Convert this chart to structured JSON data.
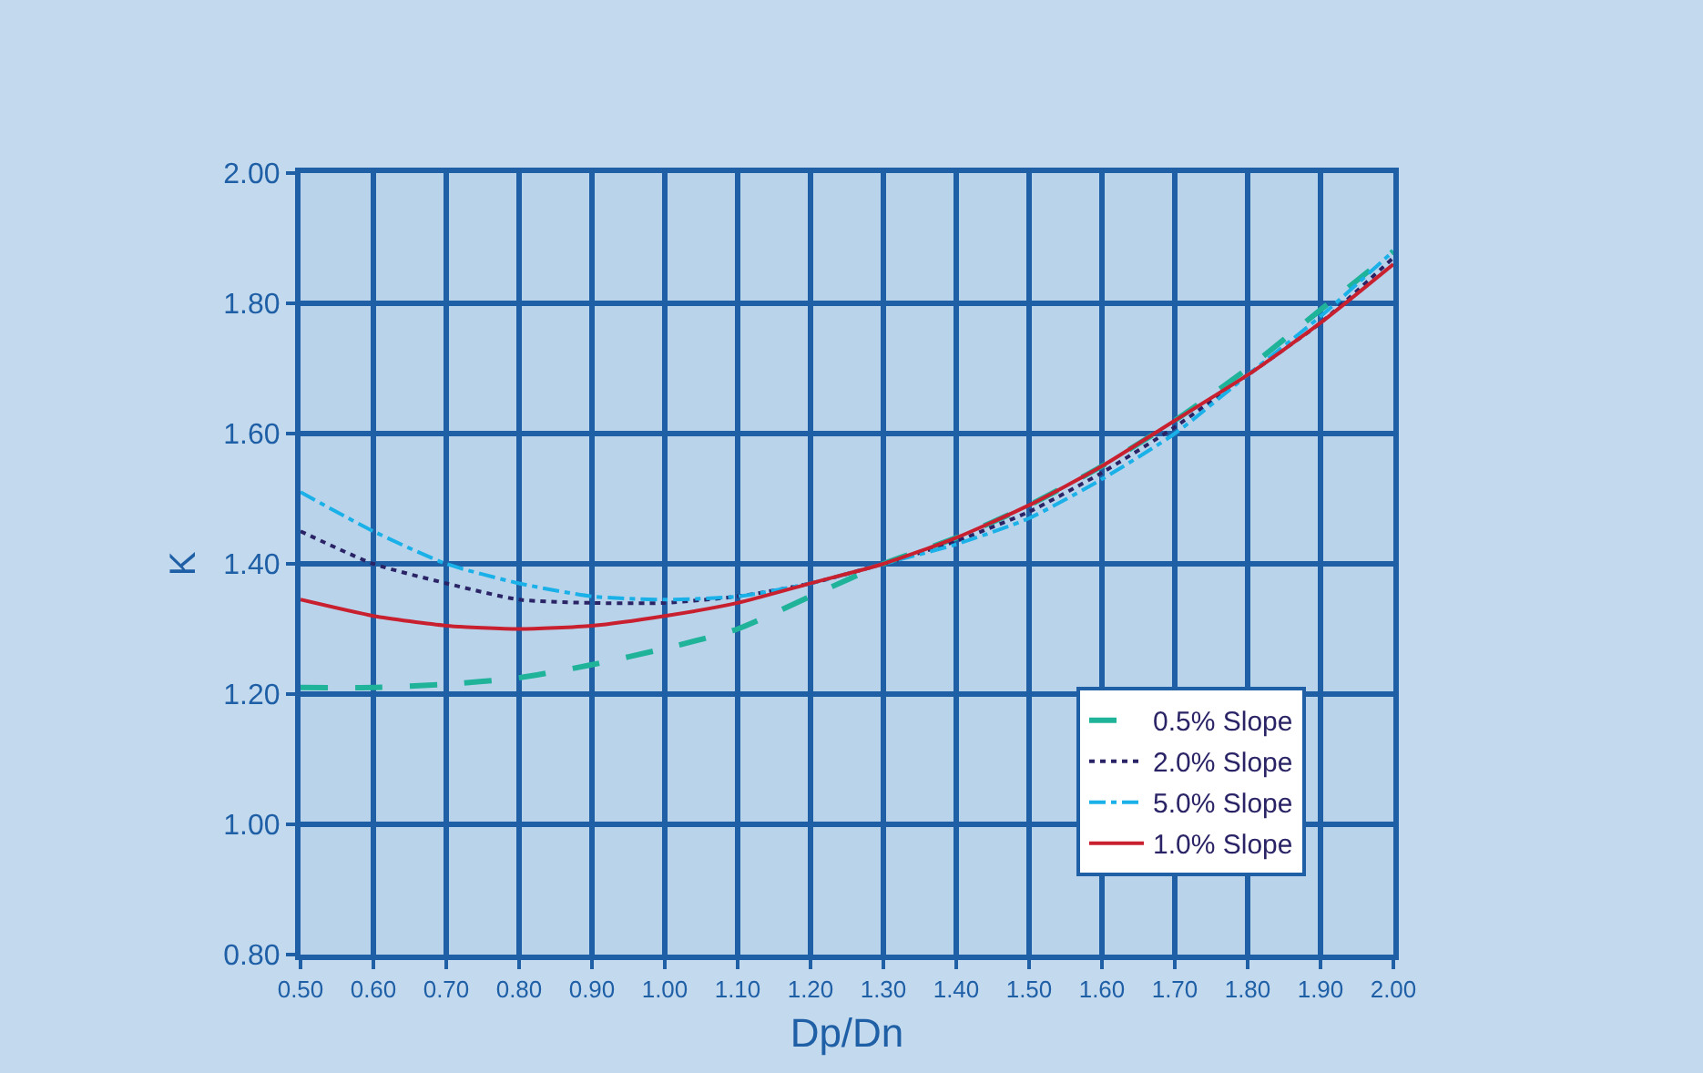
{
  "chart_data": {
    "type": "line",
    "xlabel": "Dp/Dn",
    "ylabel": "K",
    "x": [
      0.5,
      0.6,
      0.7,
      0.8,
      0.9,
      1.0,
      1.1,
      1.2,
      1.3,
      1.4,
      1.5,
      1.6,
      1.7,
      1.8,
      1.9,
      2.0
    ],
    "series": [
      {
        "name": "0.5% Slope",
        "color": "#1fb39a",
        "line_style": "dashed",
        "values": [
          1.21,
          1.21,
          1.215,
          1.225,
          1.245,
          1.27,
          1.3,
          1.35,
          1.4,
          1.44,
          1.49,
          1.55,
          1.62,
          1.7,
          1.79,
          1.88
        ]
      },
      {
        "name": "2.0% Slope",
        "color": "#2a2466",
        "line_style": "dotted",
        "values": [
          1.45,
          1.4,
          1.37,
          1.345,
          1.34,
          1.34,
          1.35,
          1.37,
          1.4,
          1.435,
          1.48,
          1.54,
          1.61,
          1.69,
          1.77,
          1.87
        ]
      },
      {
        "name": "5.0% Slope",
        "color": "#1ab0e8",
        "line_style": "dashdot",
        "values": [
          1.51,
          1.45,
          1.4,
          1.37,
          1.35,
          1.345,
          1.35,
          1.37,
          1.4,
          1.43,
          1.47,
          1.53,
          1.6,
          1.69,
          1.78,
          1.88
        ]
      },
      {
        "name": "1.0% Slope",
        "color": "#c8202f",
        "line_style": "solid",
        "values": [
          1.345,
          1.32,
          1.305,
          1.3,
          1.305,
          1.32,
          1.34,
          1.37,
          1.4,
          1.44,
          1.49,
          1.55,
          1.62,
          1.69,
          1.77,
          1.86
        ]
      }
    ],
    "xlim": [
      0.5,
      2.0
    ],
    "xticks": [
      {
        "value": 0.5,
        "label": "0.50"
      },
      {
        "value": 0.6,
        "label": "0.60"
      },
      {
        "value": 0.7,
        "label": "0.70"
      },
      {
        "value": 0.8,
        "label": "0.80"
      },
      {
        "value": 0.9,
        "label": "0.90"
      },
      {
        "value": 1.0,
        "label": "1.00"
      },
      {
        "value": 1.1,
        "label": "1.10"
      },
      {
        "value": 1.2,
        "label": "1.20"
      },
      {
        "value": 1.3,
        "label": "1.30"
      },
      {
        "value": 1.4,
        "label": "1.40"
      },
      {
        "value": 1.5,
        "label": "1.50"
      },
      {
        "value": 1.6,
        "label": "1.60"
      },
      {
        "value": 1.7,
        "label": "1.70"
      },
      {
        "value": 1.8,
        "label": "1.80"
      },
      {
        "value": 1.9,
        "label": "1.90"
      },
      {
        "value": 2.0,
        "label": "2.00"
      }
    ],
    "ylim": [
      0.8,
      2.0
    ],
    "yticks": [
      {
        "value": 0.8,
        "label": "0.80"
      },
      {
        "value": 1.0,
        "label": "1.00"
      },
      {
        "value": 1.2,
        "label": "1.20"
      },
      {
        "value": 1.4,
        "label": "1.40"
      },
      {
        "value": 1.6,
        "label": "1.60"
      },
      {
        "value": 1.8,
        "label": "1.80"
      },
      {
        "value": 2.0,
        "label": "2.00"
      }
    ],
    "grid": true,
    "legend": "bottom right",
    "marker": "none"
  }
}
